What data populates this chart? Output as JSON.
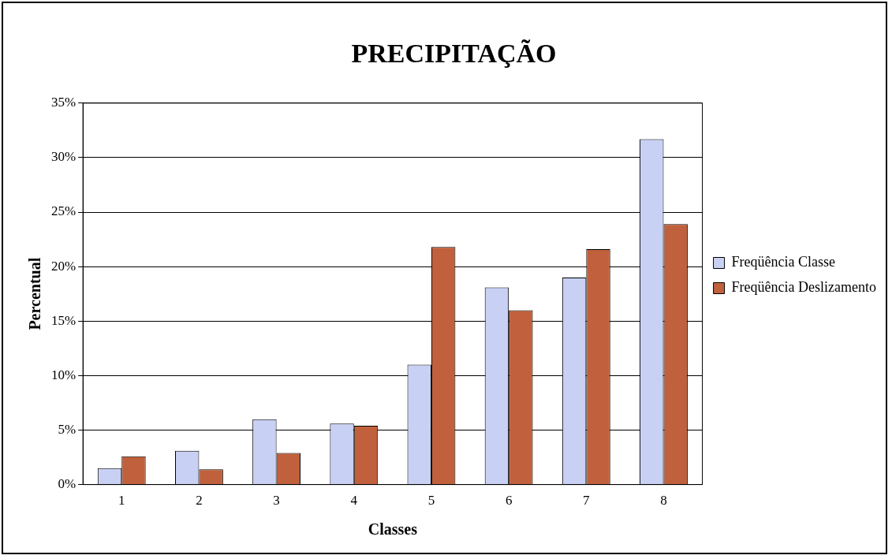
{
  "chart_data": {
    "type": "bar",
    "title": "PRECIPITAÇÃO",
    "xlabel": "Classes",
    "ylabel": "Percentual",
    "categories": [
      "1",
      "2",
      "3",
      "4",
      "5",
      "6",
      "7",
      "8"
    ],
    "series": [
      {
        "name": "Freqüência Classe",
        "color": "#c8d0f4",
        "values": [
          1.5,
          3.1,
          6.0,
          5.6,
          11.0,
          18.1,
          19.0,
          31.7
        ]
      },
      {
        "name": "Freqüência Deslizamento",
        "color": "#c0603c",
        "values": [
          2.6,
          1.4,
          2.9,
          5.4,
          21.8,
          16.0,
          21.6,
          23.9
        ]
      }
    ],
    "ylim": [
      0,
      35
    ],
    "yticks": [
      {
        "value": 0,
        "label": "0%"
      },
      {
        "value": 5,
        "label": "5%"
      },
      {
        "value": 10,
        "label": "10%"
      },
      {
        "value": 15,
        "label": "15%"
      },
      {
        "value": 20,
        "label": "20%"
      },
      {
        "value": 25,
        "label": "25%"
      },
      {
        "value": 30,
        "label": "30%"
      },
      {
        "value": 35,
        "label": "35%"
      }
    ],
    "grid": "y",
    "legend": "right"
  }
}
